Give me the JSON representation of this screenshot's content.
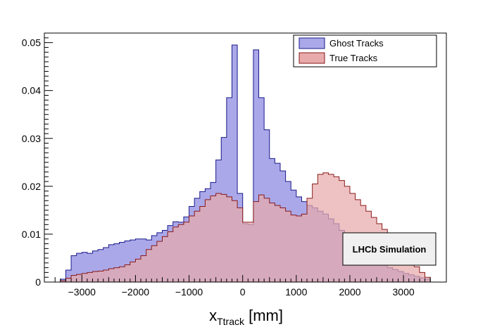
{
  "chart_data": {
    "type": "histogram",
    "xlabel": {
      "main": "x",
      "sub": "Ttrack",
      "unit": " [mm]"
    },
    "ylabel": "",
    "xlim": [
      -3700,
      3800
    ],
    "ylim": [
      0,
      0.052
    ],
    "x_ticks": [
      -3000,
      -2000,
      -1000,
      0,
      1000,
      2000,
      3000
    ],
    "x_tick_labels": [
      "−3000",
      "−2000",
      "−1000",
      "0",
      "1000",
      "2000",
      "3000"
    ],
    "y_ticks": [
      0,
      0.01,
      0.02,
      0.03,
      0.04,
      0.05
    ],
    "y_tick_labels": [
      "0",
      "0.01",
      "0.02",
      "0.03",
      "0.04",
      "0.05"
    ],
    "bin_start": -3400,
    "bin_width": 100,
    "legend_position": "top-right",
    "series": [
      {
        "name": "Ghost Tracks",
        "fill": "#aaa8e8",
        "stroke": "#1a1a8a",
        "values": [
          0.0006,
          0.0025,
          0.0055,
          0.006,
          0.0062,
          0.006,
          0.0065,
          0.0068,
          0.0072,
          0.0078,
          0.008,
          0.0083,
          0.0086,
          0.0088,
          0.009,
          0.009,
          0.0088,
          0.0097,
          0.0103,
          0.0108,
          0.0118,
          0.0126,
          0.0125,
          0.0136,
          0.0158,
          0.0175,
          0.0189,
          0.0195,
          0.0208,
          0.0255,
          0.0302,
          0.0385,
          0.0495,
          0.0185,
          0.0122,
          0.012,
          0.0485,
          0.0385,
          0.0318,
          0.0258,
          0.0248,
          0.0232,
          0.021,
          0.0192,
          0.0178,
          0.0168,
          0.016,
          0.0155,
          0.0148,
          0.0142,
          0.0132,
          0.0122,
          0.0108,
          0.0093,
          0.008,
          0.0068,
          0.0058,
          0.005,
          0.0045,
          0.004,
          0.0036,
          0.003,
          0.0026,
          0.0022,
          0.0018,
          0.0015,
          0.0012,
          0.0009,
          0.0006
        ]
      },
      {
        "name": "True Tracks",
        "fill": "#e8aaaa",
        "stroke": "#8a1a1a",
        "values": [
          0.0003,
          0.0008,
          0.0014,
          0.0016,
          0.0018,
          0.002,
          0.0022,
          0.0023,
          0.0025,
          0.0028,
          0.003,
          0.0032,
          0.0036,
          0.0042,
          0.0048,
          0.0055,
          0.0068,
          0.0076,
          0.0085,
          0.0095,
          0.0105,
          0.0115,
          0.012,
          0.0125,
          0.0138,
          0.0148,
          0.0158,
          0.0172,
          0.018,
          0.0185,
          0.0183,
          0.0178,
          0.017,
          0.0155,
          0.0125,
          0.0125,
          0.0168,
          0.0182,
          0.0175,
          0.0165,
          0.016,
          0.0155,
          0.0148,
          0.014,
          0.0138,
          0.0142,
          0.0175,
          0.0205,
          0.0225,
          0.0228,
          0.0225,
          0.022,
          0.0212,
          0.02,
          0.0185,
          0.0172,
          0.016,
          0.0148,
          0.0135,
          0.0122,
          0.011,
          0.01,
          0.009,
          0.0075,
          0.006,
          0.0045,
          0.0032,
          0.002,
          0.001
        ]
      }
    ],
    "annotation": "LHCb Simulation"
  }
}
